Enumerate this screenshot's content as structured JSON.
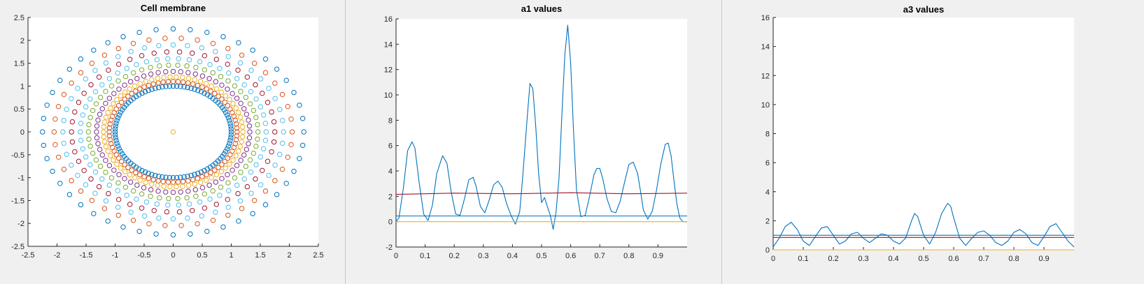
{
  "figure": {
    "windows": 3
  },
  "chart_data": [
    {
      "type": "scatter",
      "title": "Cell membrane",
      "xlim": [
        -2.5,
        2.5
      ],
      "ylim": [
        -2.5,
        2.5
      ],
      "xticks": [
        "-2.5",
        "-2",
        "-1.5",
        "-1",
        "-0.5",
        "0",
        "0.5",
        "1",
        "1.5",
        "2",
        "2.5"
      ],
      "yticks": [
        "2.5",
        "2",
        "1.5",
        "1",
        "0.5",
        "0",
        "-0.5",
        "-1",
        "-1.5",
        "-2",
        "-2.5"
      ],
      "marker": "open-circle",
      "center_point": {
        "x": 0,
        "y": 0,
        "color": "#edb120"
      },
      "series": [
        {
          "rx": 1.0,
          "ry": 1.0,
          "points": 100,
          "color": "#0072bd"
        },
        {
          "rx": 1.1,
          "ry": 1.1,
          "points": 80,
          "color": "#d95319"
        },
        {
          "rx": 1.2,
          "ry": 1.2,
          "points": 70,
          "color": "#edb120"
        },
        {
          "rx": 1.32,
          "ry": 1.32,
          "points": 64,
          "color": "#7e2f8e"
        },
        {
          "rx": 1.46,
          "ry": 1.46,
          "points": 58,
          "color": "#77ac30"
        },
        {
          "rx": 1.6,
          "ry": 1.6,
          "points": 54,
          "color": "#4dbeee"
        },
        {
          "rx": 1.75,
          "ry": 1.75,
          "points": 50,
          "color": "#a2142f"
        },
        {
          "rx": 1.9,
          "ry": 1.9,
          "points": 48,
          "color": "#4dbeee"
        },
        {
          "rx": 2.05,
          "ry": 2.05,
          "points": 46,
          "color": "#d95319"
        },
        {
          "rx": 2.25,
          "ry": 2.25,
          "points": 48,
          "color": "#0072bd"
        }
      ]
    },
    {
      "type": "line",
      "title": "a1 values",
      "xlim": [
        0,
        1
      ],
      "ylim": [
        -2,
        16
      ],
      "xticks": [
        "0",
        "0.1",
        "0.2",
        "0.3",
        "0.4",
        "0.5",
        "0.6",
        "0.7",
        "0.8",
        "0.9"
      ],
      "yticks": [
        "16",
        "14",
        "12",
        "10",
        "8",
        "6",
        "4",
        "2",
        "0",
        "-2"
      ],
      "series": [
        {
          "color": "#0072bd",
          "x": [
            0,
            0.01,
            0.025,
            0.04,
            0.055,
            0.065,
            0.08,
            0.095,
            0.11,
            0.125,
            0.14,
            0.16,
            0.175,
            0.19,
            0.205,
            0.22,
            0.235,
            0.25,
            0.265,
            0.275,
            0.29,
            0.305,
            0.32,
            0.335,
            0.35,
            0.365,
            0.38,
            0.395,
            0.41,
            0.425,
            0.435,
            0.45,
            0.46,
            0.47,
            0.48,
            0.49,
            0.5,
            0.51,
            0.52,
            0.53,
            0.54,
            0.55,
            0.56,
            0.57,
            0.58,
            0.59,
            0.6,
            0.61,
            0.62,
            0.635,
            0.65,
            0.665,
            0.68,
            0.69,
            0.7,
            0.71,
            0.725,
            0.74,
            0.755,
            0.77,
            0.785,
            0.8,
            0.815,
            0.83,
            0.84,
            0.85,
            0.865,
            0.88,
            0.895,
            0.91,
            0.925,
            0.935,
            0.945,
            0.955,
            0.965,
            0.975,
            0.985,
            1.0
          ],
          "y": [
            0.0,
            0.3,
            2.6,
            5.6,
            6.3,
            5.8,
            3.0,
            0.6,
            0.1,
            1.3,
            3.8,
            5.2,
            4.6,
            2.3,
            0.6,
            0.5,
            1.8,
            3.3,
            3.5,
            2.8,
            1.2,
            0.7,
            1.7,
            2.9,
            3.2,
            2.7,
            1.4,
            0.5,
            -0.2,
            0.8,
            3.5,
            8.0,
            10.9,
            10.5,
            7.5,
            3.8,
            1.5,
            1.9,
            1.2,
            0.5,
            -0.6,
            0.8,
            3.5,
            8.5,
            13.2,
            15.5,
            12.5,
            7.0,
            2.5,
            0.4,
            0.5,
            2.0,
            3.7,
            4.2,
            4.2,
            3.4,
            1.8,
            0.8,
            0.7,
            1.6,
            3.1,
            4.5,
            4.7,
            3.8,
            2.4,
            0.9,
            0.2,
            0.8,
            2.5,
            4.6,
            6.1,
            6.2,
            5.2,
            3.2,
            1.4,
            0.3,
            0.0,
            0.0
          ]
        },
        {
          "color": "#a2142f",
          "x": [
            0,
            0.2,
            0.4,
            0.6,
            0.8,
            1.0
          ],
          "y": [
            2.15,
            2.25,
            2.2,
            2.28,
            2.2,
            2.25
          ]
        },
        {
          "color": "#0072bd",
          "x": [
            0,
            1.0
          ],
          "y": [
            0.45,
            0.45
          ]
        },
        {
          "color": "#edb120",
          "x": [
            0,
            1.0
          ],
          "y": [
            0.0,
            0.0
          ]
        }
      ]
    },
    {
      "type": "line",
      "title": "a3 values",
      "xlim": [
        0,
        1
      ],
      "ylim": [
        0,
        16
      ],
      "xticks": [
        "0",
        "0.1",
        "0.2",
        "0.3",
        "0.4",
        "0.5",
        "0.6",
        "0.7",
        "0.8",
        "0.9"
      ],
      "yticks": [
        "16",
        "14",
        "12",
        "10",
        "8",
        "6",
        "4",
        "2",
        "0"
      ],
      "series": [
        {
          "color": "#0072bd",
          "x": [
            0,
            0.02,
            0.04,
            0.06,
            0.08,
            0.1,
            0.12,
            0.14,
            0.16,
            0.18,
            0.2,
            0.22,
            0.24,
            0.26,
            0.28,
            0.3,
            0.32,
            0.34,
            0.36,
            0.38,
            0.4,
            0.42,
            0.44,
            0.46,
            0.47,
            0.48,
            0.5,
            0.52,
            0.54,
            0.56,
            0.58,
            0.59,
            0.6,
            0.62,
            0.64,
            0.66,
            0.68,
            0.7,
            0.72,
            0.74,
            0.76,
            0.78,
            0.8,
            0.82,
            0.84,
            0.86,
            0.88,
            0.9,
            0.92,
            0.94,
            0.96,
            0.98,
            1.0
          ],
          "y": [
            0.2,
            0.8,
            1.6,
            1.9,
            1.4,
            0.6,
            0.3,
            0.9,
            1.5,
            1.6,
            1.0,
            0.4,
            0.6,
            1.1,
            1.2,
            0.8,
            0.5,
            0.8,
            1.1,
            1.0,
            0.6,
            0.4,
            0.8,
            2.0,
            2.5,
            2.3,
            1.0,
            0.4,
            1.2,
            2.5,
            3.2,
            3.0,
            2.2,
            0.8,
            0.3,
            0.8,
            1.2,
            1.3,
            1.0,
            0.5,
            0.3,
            0.6,
            1.2,
            1.4,
            1.1,
            0.5,
            0.3,
            0.9,
            1.6,
            1.8,
            1.2,
            0.6,
            0.2
          ]
        },
        {
          "color": "#a2142f",
          "x": [
            0,
            1.0
          ],
          "y": [
            0.85,
            0.85
          ]
        },
        {
          "color": "#0072bd",
          "x": [
            0,
            1.0
          ],
          "y": [
            1.0,
            1.0
          ]
        },
        {
          "color": "#edb120",
          "x": [
            0,
            1.0
          ],
          "y": [
            0.0,
            0.0
          ]
        }
      ]
    }
  ]
}
